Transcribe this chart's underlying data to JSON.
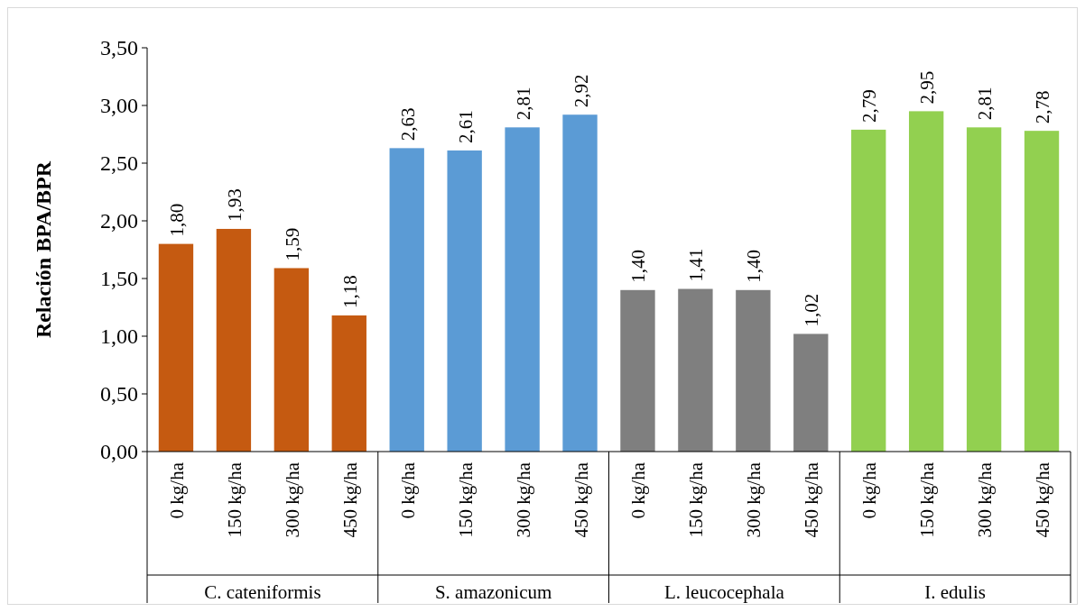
{
  "chart_data": {
    "type": "bar",
    "ylabel": "Relación BPA/BPR",
    "categories": [
      "0 kg/ha",
      "150 kg/ha",
      "300 kg/ha",
      "450 kg/ha",
      "0 kg/ha",
      "150 kg/ha",
      "300 kg/ha",
      "450 kg/ha",
      "0 kg/ha",
      "150 kg/ha",
      "300 kg/ha",
      "450 kg/ha",
      "0 kg/ha",
      "150 kg/ha",
      "300 kg/ha",
      "450 kg/ha"
    ],
    "values": [
      1.8,
      1.93,
      1.59,
      1.18,
      2.63,
      2.61,
      2.81,
      2.92,
      1.4,
      1.41,
      1.4,
      1.02,
      2.79,
      2.95,
      2.81,
      2.78
    ],
    "value_labels": [
      "1,80",
      "1,93",
      "1,59",
      "1,18",
      "2,63",
      "2,61",
      "2,81",
      "2,92",
      "1,40",
      "1,41",
      "1,40",
      "1,02",
      "2,79",
      "2,95",
      "2,81",
      "2,78"
    ],
    "colors": [
      "#c55a11",
      "#c55a11",
      "#c55a11",
      "#c55a11",
      "#5b9bd5",
      "#5b9bd5",
      "#5b9bd5",
      "#5b9bd5",
      "#7f7f7f",
      "#7f7f7f",
      "#7f7f7f",
      "#7f7f7f",
      "#92d050",
      "#92d050",
      "#92d050",
      "#92d050"
    ],
    "annotations": [
      "C. cateniformis",
      "S. amazonicum",
      "L. leucocephala",
      "I. edulis"
    ],
    "ylim": [
      0,
      3.5
    ],
    "yticks": [
      {
        "value": 0,
        "label": "0,00"
      },
      {
        "value": 0.5,
        "label": "0,50"
      },
      {
        "value": 1,
        "label": "1,00"
      },
      {
        "value": 1.5,
        "label": "1,50"
      },
      {
        "value": 2,
        "label": "2,00"
      },
      {
        "value": 2.5,
        "label": "2,50"
      },
      {
        "value": 3,
        "label": "3,00"
      },
      {
        "value": 3.5,
        "label": "3,50"
      }
    ],
    "grid": false
  }
}
